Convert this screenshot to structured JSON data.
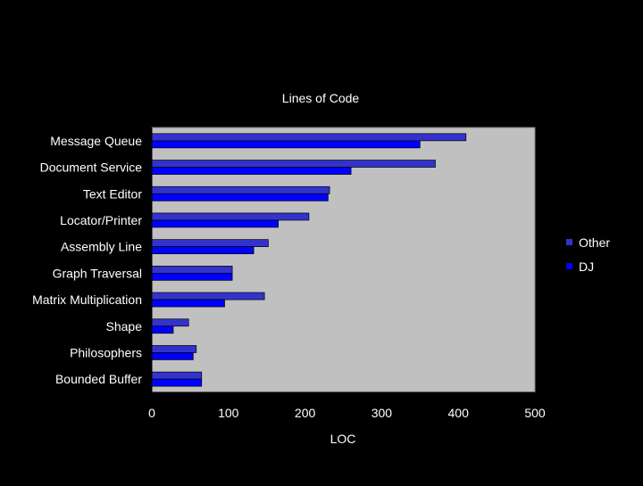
{
  "chart_data": {
    "type": "bar",
    "orientation": "horizontal",
    "title": "Lines of Code",
    "xlabel": "LOC",
    "ylabel": "",
    "xlim": [
      0,
      500
    ],
    "xticks": [
      0,
      100,
      200,
      300,
      400,
      500
    ],
    "grid": false,
    "legend_position": "right",
    "plot_background": "#c0c0c0",
    "page_background": "#000000",
    "categories": [
      "Message Queue",
      "Document Service",
      "Text Editor",
      "Locator/Printer",
      "Assembly Line",
      "Graph Traversal",
      "Matrix Multiplication",
      "Shape",
      "Philosophers",
      "Bounded Buffer"
    ],
    "series": [
      {
        "name": "Other",
        "color": "#3333cc",
        "values": [
          410,
          370,
          232,
          205,
          152,
          105,
          147,
          48,
          58,
          65
        ]
      },
      {
        "name": "DJ",
        "color": "#0000ff",
        "values": [
          350,
          260,
          230,
          165,
          133,
          105,
          95,
          28,
          54,
          65
        ]
      }
    ]
  }
}
